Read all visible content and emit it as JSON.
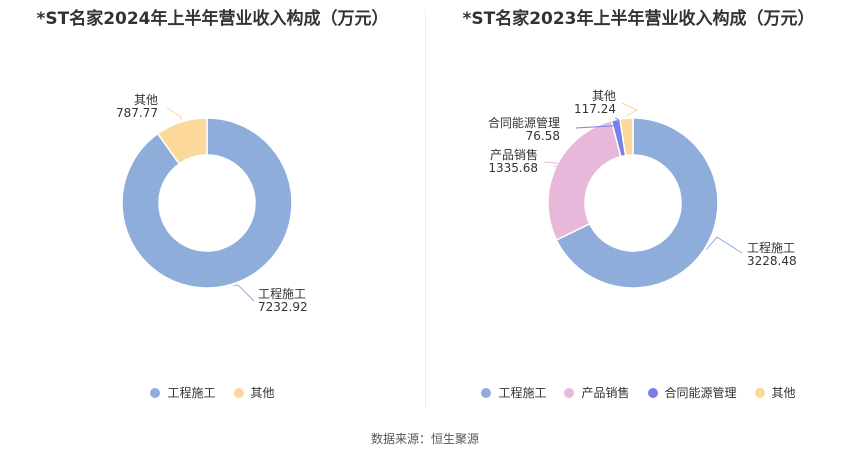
{
  "source": "数据来源：恒生聚源",
  "chart_data": [
    {
      "type": "pie",
      "title": "*ST名家2024年上半年营业收入构成（万元）",
      "slices": [
        {
          "label": "工程施工",
          "value": 7232.92,
          "value_text": "7232.92",
          "color": "#8faddb"
        },
        {
          "label": "其他",
          "value": 787.77,
          "value_text": "787.77",
          "color": "#fcd99a"
        }
      ]
    },
    {
      "type": "pie",
      "title": "*ST名家2023年上半年营业收入构成（万元）",
      "slices": [
        {
          "label": "工程施工",
          "value": 3228.48,
          "value_text": "3228.48",
          "color": "#8faddb"
        },
        {
          "label": "产品销售",
          "value": 1335.68,
          "value_text": "1335.68",
          "color": "#e7b8d9"
        },
        {
          "label": "合同能源管理",
          "value": 76.58,
          "value_text": "76.58",
          "color": "#7a7ee8"
        },
        {
          "label": "其他",
          "value": 117.24,
          "value_text": "117.24",
          "color": "#fcd99a"
        }
      ]
    }
  ]
}
